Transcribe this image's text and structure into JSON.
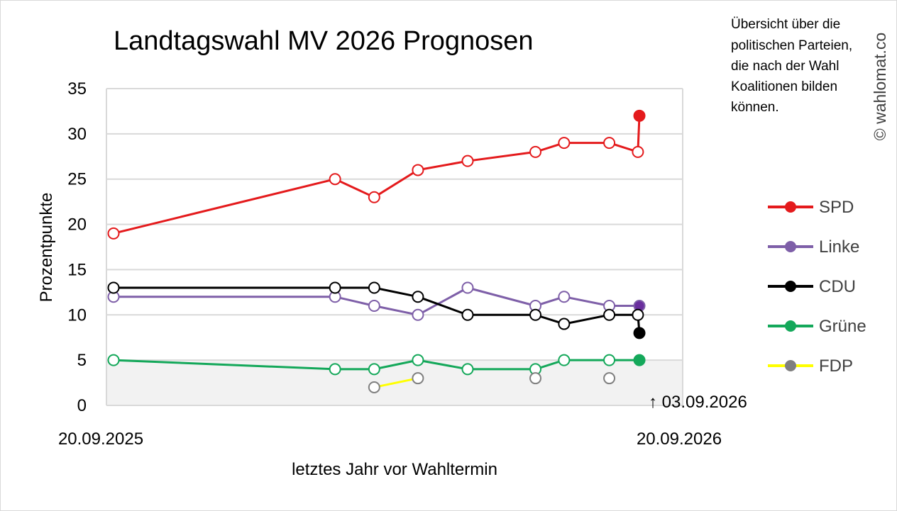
{
  "chart_data": {
    "type": "line",
    "title": "Landtagswahl MV 2026 Prognosen",
    "xlabel": "letztes Jahr vor Wahltermin",
    "ylabel": "Prozentpunkte",
    "ylim": [
      0,
      35
    ],
    "yticks": [
      0,
      5,
      10,
      15,
      20,
      25,
      30,
      35
    ],
    "x_start_label": "20.09.2025",
    "x_end_label": "20.09.2026",
    "x_range": [
      "2025-09-20",
      "2026-09-20"
    ],
    "annotation": "↑ 03.09.2026",
    "annotation_x": "2026-09-03",
    "shaded_band": [
      0,
      5
    ],
    "grid": true,
    "legend_position": "right",
    "note": [
      "Übersicht über die",
      "politischen Parteien,",
      "die nach der Wahl",
      "Koalitionen bilden",
      "können."
    ],
    "watermark": "© wahlomat.co",
    "series": [
      {
        "name": "SPD",
        "color": "#e41a1c",
        "connected": true,
        "points": [
          {
            "x": "2025-09-20",
            "y": 19
          },
          {
            "x": "2026-02-14",
            "y": 25
          },
          {
            "x": "2026-03-12",
            "y": 23
          },
          {
            "x": "2026-04-10",
            "y": 26
          },
          {
            "x": "2026-05-13",
            "y": 27
          },
          {
            "x": "2026-06-27",
            "y": 28
          },
          {
            "x": "2026-07-16",
            "y": 29
          },
          {
            "x": "2026-08-15",
            "y": 29
          },
          {
            "x": "2026-09-03",
            "y": 28
          },
          {
            "x": "2026-09-04",
            "y": 32,
            "filled": true
          }
        ]
      },
      {
        "name": "Linke",
        "color": "#7e5fa8",
        "connected": true,
        "points": [
          {
            "x": "2025-09-20",
            "y": 12
          },
          {
            "x": "2026-02-14",
            "y": 12
          },
          {
            "x": "2026-03-12",
            "y": 11
          },
          {
            "x": "2026-04-10",
            "y": 10
          },
          {
            "x": "2026-05-13",
            "y": 13
          },
          {
            "x": "2026-06-27",
            "y": 11
          },
          {
            "x": "2026-07-16",
            "y": 12
          },
          {
            "x": "2026-08-15",
            "y": 11
          },
          {
            "x": "2026-09-04",
            "y": 11,
            "filled": true,
            "fill": "#6a2e9e"
          }
        ]
      },
      {
        "name": "CDU",
        "color": "#000000",
        "connected": true,
        "points": [
          {
            "x": "2025-09-20",
            "y": 13
          },
          {
            "x": "2026-02-14",
            "y": 13
          },
          {
            "x": "2026-03-12",
            "y": 13
          },
          {
            "x": "2026-04-10",
            "y": 12
          },
          {
            "x": "2026-05-13",
            "y": 10
          },
          {
            "x": "2026-06-27",
            "y": 10
          },
          {
            "x": "2026-07-16",
            "y": 9
          },
          {
            "x": "2026-08-15",
            "y": 10
          },
          {
            "x": "2026-09-03",
            "y": 10
          },
          {
            "x": "2026-09-04",
            "y": 8,
            "filled": true
          }
        ]
      },
      {
        "name": "Grüne",
        "color": "#14a85a",
        "connected": true,
        "points": [
          {
            "x": "2025-09-20",
            "y": 5
          },
          {
            "x": "2026-02-14",
            "y": 4
          },
          {
            "x": "2026-03-12",
            "y": 4
          },
          {
            "x": "2026-04-10",
            "y": 5
          },
          {
            "x": "2026-05-13",
            "y": 4
          },
          {
            "x": "2026-06-27",
            "y": 4
          },
          {
            "x": "2026-07-16",
            "y": 5
          },
          {
            "x": "2026-08-15",
            "y": 5
          },
          {
            "x": "2026-09-04",
            "y": 5,
            "filled": true
          }
        ]
      },
      {
        "name": "FDP",
        "color": "#808080",
        "line_color": "#ffff00",
        "connected": false,
        "points": [
          {
            "x": "2026-03-12",
            "y": 2,
            "link_next": true
          },
          {
            "x": "2026-04-10",
            "y": 3
          },
          {
            "x": "2026-06-27",
            "y": 3
          },
          {
            "x": "2026-08-15",
            "y": 3
          }
        ]
      }
    ]
  }
}
